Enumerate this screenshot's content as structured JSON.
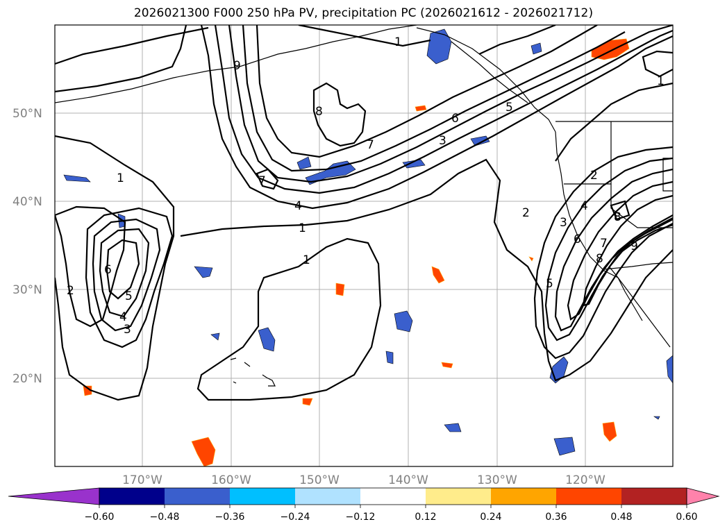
{
  "title": "2026021300 F000 250 hPa PV, precipitation PC (2026021612 - 2026021712)",
  "lat_labels": [
    "50°N",
    "40°N",
    "30°N",
    "20°N"
  ],
  "lon_labels": [
    "170°W",
    "160°W",
    "150°W",
    "140°W",
    "130°W",
    "120°W"
  ],
  "colorbar": {
    "ticks": [
      "−0.60",
      "−0.48",
      "−0.36",
      "−0.24",
      "−0.12",
      "0.12",
      "0.24",
      "0.36",
      "0.48",
      "0.60"
    ],
    "colors": [
      "#9932cc",
      "#00008b",
      "#3a5fcd",
      "#00bfff",
      "#b0e2ff",
      "#ffffff",
      "#ffec8b",
      "#ffa500",
      "#ff4500",
      "#b22222",
      "#ff82ab"
    ]
  },
  "contour_labels": [
    "1",
    "1",
    "1",
    "1",
    "2",
    "2",
    "3",
    "3",
    "4",
    "4",
    "5",
    "5",
    "6",
    "6",
    "7",
    "7",
    "8",
    "8",
    "9",
    "9",
    "1",
    "2",
    "6",
    "5",
    "4",
    "3",
    "7",
    "8"
  ]
}
